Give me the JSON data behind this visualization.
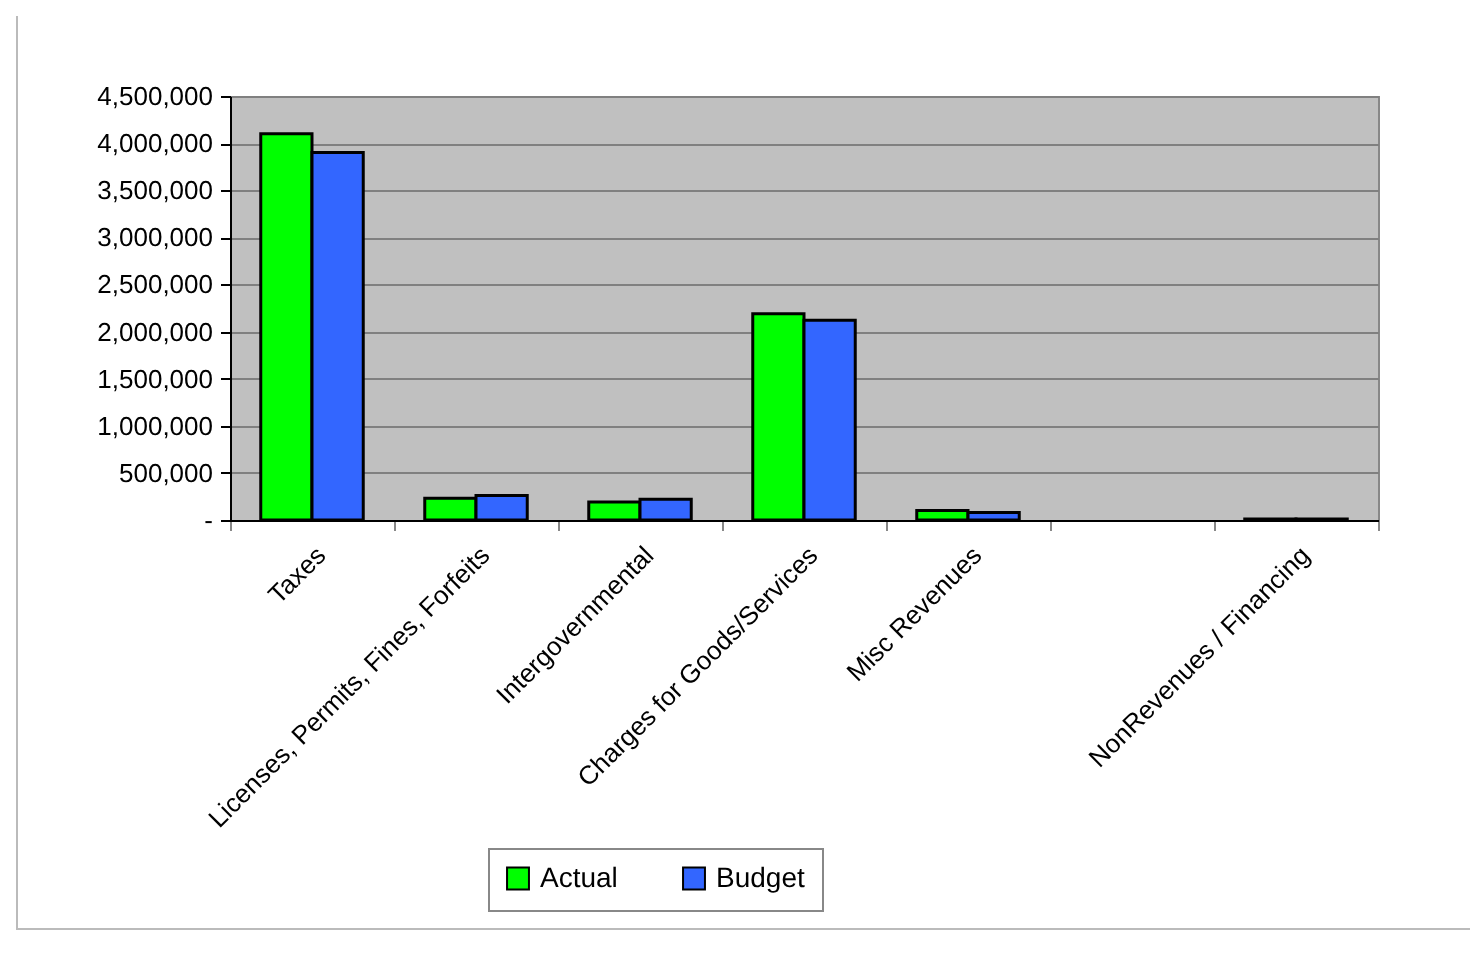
{
  "chart_data": {
    "type": "bar",
    "categories": [
      "Taxes",
      "Licenses, Permits, Fines, Forfeits",
      "Intergovernmental",
      "Charges for Goods/Services",
      "Misc Revenues",
      null,
      "NonRevenues / Financing"
    ],
    "series": [
      {
        "name": "Actual",
        "color": "#00ff00",
        "values": [
          4100000,
          230000,
          190000,
          2190000,
          100000,
          null,
          10000
        ]
      },
      {
        "name": "Budget",
        "color": "#3366ff",
        "values": [
          3900000,
          260000,
          220000,
          2120000,
          80000,
          null,
          10000
        ]
      }
    ],
    "ylim": [
      0,
      4500000
    ],
    "yticks": [
      {
        "value": 0,
        "label": "-"
      },
      {
        "value": 500000,
        "label": "500,000"
      },
      {
        "value": 1000000,
        "label": "1,000,000"
      },
      {
        "value": 1500000,
        "label": "1,500,000"
      },
      {
        "value": 2000000,
        "label": "2,000,000"
      },
      {
        "value": 2500000,
        "label": "2,500,000"
      },
      {
        "value": 3000000,
        "label": "3,000,000"
      },
      {
        "value": 3500000,
        "label": "3,500,000"
      },
      {
        "value": 4000000,
        "label": "4,000,000"
      },
      {
        "value": 4500000,
        "label": "4,500,000"
      }
    ],
    "grid": "y",
    "legend": "bottom"
  }
}
